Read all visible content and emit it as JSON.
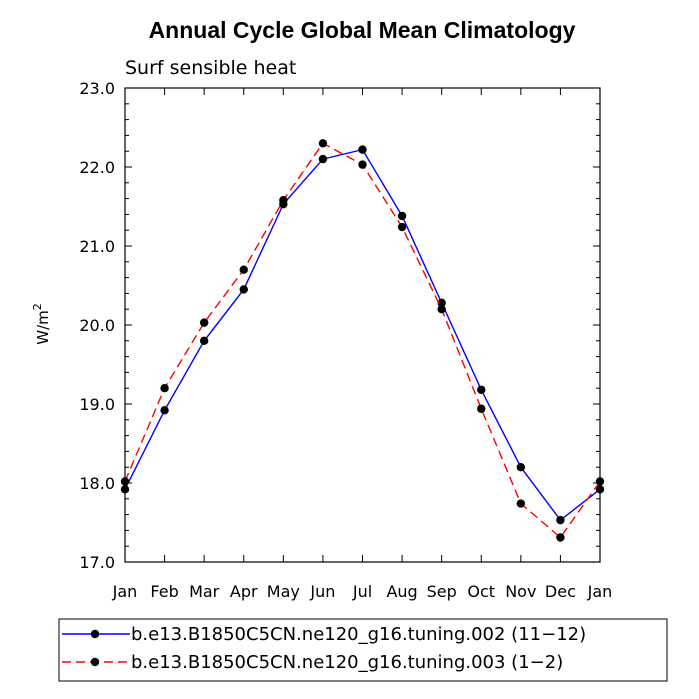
{
  "chart_data": {
    "type": "line",
    "title": "Annual Cycle Global Mean Climatology",
    "subtitle": "Surf sensible heat",
    "ylabel": "W/m",
    "ylabel_sup": "2",
    "xlabel": "",
    "ylim": [
      17.0,
      23.0
    ],
    "yticks": [
      17.0,
      18.0,
      19.0,
      20.0,
      21.0,
      22.0,
      23.0
    ],
    "ytick_labels": [
      "17.0",
      "18.0",
      "19.0",
      "20.0",
      "21.0",
      "22.0",
      "23.0"
    ],
    "categories": [
      "Jan",
      "Feb",
      "Mar",
      "Apr",
      "May",
      "Jun",
      "Jul",
      "Aug",
      "Sep",
      "Oct",
      "Nov",
      "Dec",
      "Jan"
    ],
    "series": [
      {
        "name": "b.e13.B1850C5CN.ne120_g16.tuning.002 (11−12)",
        "color": "#0000ff",
        "dash": "solid",
        "values": [
          17.92,
          18.92,
          19.8,
          20.45,
          21.53,
          22.1,
          22.22,
          21.38,
          20.28,
          19.18,
          18.2,
          17.53,
          17.92
        ]
      },
      {
        "name": "b.e13.B1850C5CN.ne120_g16.tuning.003 (1−2)",
        "color": "#ff0000",
        "dash": "dashed",
        "values": [
          18.02,
          19.2,
          20.03,
          20.7,
          21.58,
          22.3,
          22.03,
          21.24,
          20.2,
          18.94,
          17.74,
          17.31,
          18.02
        ]
      }
    ],
    "legend_position": "bottom"
  }
}
